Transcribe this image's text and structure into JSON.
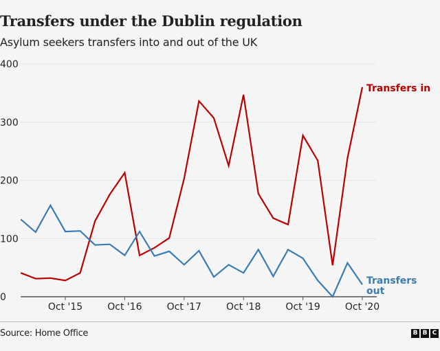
{
  "header": {
    "title": "Transfers under the Dublin regulation",
    "subtitle": "Asylum seekers transfers into and out of the UK"
  },
  "footer": {
    "source": "Source: Home Office",
    "logo_letters": [
      "B",
      "B",
      "C"
    ]
  },
  "colors": {
    "transfers_in": "#b80000",
    "transfers_out": "#3a7bb3",
    "grid": "#e6e6e6",
    "axis": "#555555"
  },
  "chart_data": {
    "type": "line",
    "title": "Transfers under the Dublin regulation",
    "subtitle": "Asylum seekers transfers into and out of the UK",
    "xlabel": "",
    "ylabel": "",
    "ylim": [
      0,
      400
    ],
    "yticks": [
      0,
      100,
      200,
      300,
      400
    ],
    "grid": true,
    "frequency": "quarterly",
    "x": [
      "Jan '15",
      "Apr '15",
      "Jul '15",
      "Oct '15",
      "Jan '16",
      "Apr '16",
      "Jul '16",
      "Oct '16",
      "Jan '17",
      "Apr '17",
      "Jul '17",
      "Oct '17",
      "Jan '18",
      "Apr '18",
      "Jul '18",
      "Oct '18",
      "Jan '19",
      "Apr '19",
      "Jul '19",
      "Oct '19",
      "Jan '20",
      "Apr '20",
      "Jul '20",
      "Oct '20"
    ],
    "xtick_labels": [
      {
        "index": 3,
        "label": "Oct '15"
      },
      {
        "index": 7,
        "label": "Oct '16"
      },
      {
        "index": 11,
        "label": "Oct '17"
      },
      {
        "index": 15,
        "label": "Oct '18"
      },
      {
        "index": 19,
        "label": "Oct '19"
      },
      {
        "index": 23,
        "label": "Oct '20"
      }
    ],
    "series": [
      {
        "name": "Transfers in",
        "label_lines": [
          "Transfers in"
        ],
        "color": "#b80000",
        "values": [
          41,
          31,
          32,
          28,
          41,
          130,
          176,
          213,
          71,
          84,
          101,
          203,
          336,
          307,
          225,
          347,
          177,
          135,
          124,
          277,
          234,
          54,
          238,
          360
        ]
      },
      {
        "name": "Transfers out",
        "label_lines": [
          "Transfers",
          "out"
        ],
        "color": "#3a7bb3",
        "values": [
          133,
          111,
          157,
          112,
          113,
          89,
          90,
          71,
          112,
          70,
          78,
          55,
          79,
          34,
          55,
          41,
          81,
          35,
          81,
          66,
          28,
          0,
          58,
          21
        ]
      }
    ],
    "legend": "direct-labels-right"
  }
}
